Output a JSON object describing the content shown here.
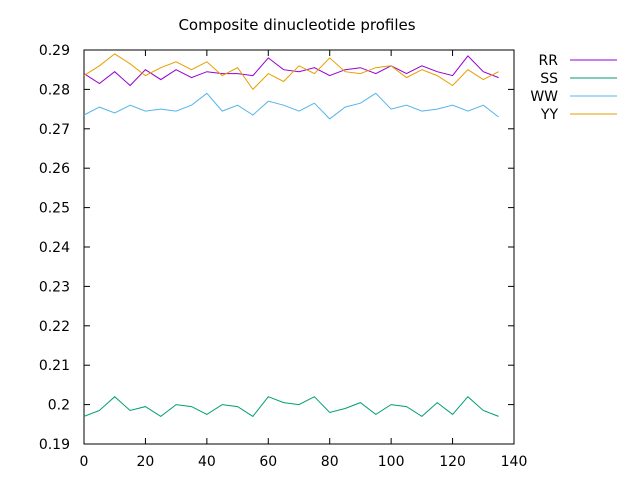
{
  "chart_data": {
    "type": "line",
    "title": "Composite dinucleotide profiles",
    "xlabel": "",
    "ylabel": "",
    "xlim": [
      0,
      140
    ],
    "ylim": [
      0.19,
      0.29
    ],
    "x_ticks": [
      "0",
      "20",
      "40",
      "60",
      "80",
      "100",
      "120",
      "140"
    ],
    "y_ticks": [
      "0.19",
      "0.2",
      "0.21",
      "0.22",
      "0.23",
      "0.24",
      "0.25",
      "0.26",
      "0.27",
      "0.28",
      "0.29"
    ],
    "grid": false,
    "legend_position": "outside-top-right",
    "x": [
      0,
      5,
      10,
      15,
      20,
      25,
      30,
      35,
      40,
      45,
      50,
      55,
      60,
      65,
      70,
      75,
      80,
      85,
      90,
      95,
      100,
      105,
      110,
      115,
      120,
      125,
      130,
      135
    ],
    "series": [
      {
        "name": "RR",
        "color": "#9400d3",
        "values": [
          0.284,
          0.2815,
          0.2845,
          0.281,
          0.285,
          0.2825,
          0.285,
          0.283,
          0.2845,
          0.284,
          0.284,
          0.2835,
          0.288,
          0.285,
          0.2845,
          0.2855,
          0.2835,
          0.285,
          0.2855,
          0.284,
          0.286,
          0.284,
          0.286,
          0.2845,
          0.2835,
          0.2885,
          0.2845,
          0.283
        ]
      },
      {
        "name": "SS",
        "color": "#009e73",
        "values": [
          0.197,
          0.1985,
          0.202,
          0.1985,
          0.1995,
          0.197,
          0.2,
          0.1995,
          0.1975,
          0.2,
          0.1995,
          0.197,
          0.202,
          0.2005,
          0.2,
          0.202,
          0.198,
          0.199,
          0.2005,
          0.1975,
          0.2,
          0.1995,
          0.197,
          0.2005,
          0.1975,
          0.202,
          0.1985,
          0.197
        ]
      },
      {
        "name": "WW",
        "color": "#56b4e9",
        "values": [
          0.2735,
          0.2755,
          0.274,
          0.276,
          0.2745,
          0.275,
          0.2745,
          0.276,
          0.279,
          0.2745,
          0.276,
          0.2735,
          0.277,
          0.276,
          0.2745,
          0.2765,
          0.2725,
          0.2755,
          0.2765,
          0.279,
          0.275,
          0.276,
          0.2745,
          0.275,
          0.276,
          0.2745,
          0.276,
          0.273
        ]
      },
      {
        "name": "YY",
        "color": "#e69f00",
        "values": [
          0.2835,
          0.286,
          0.289,
          0.2865,
          0.2835,
          0.2855,
          0.287,
          0.285,
          0.287,
          0.2835,
          0.2855,
          0.28,
          0.284,
          0.282,
          0.286,
          0.284,
          0.288,
          0.2845,
          0.284,
          0.2855,
          0.286,
          0.283,
          0.285,
          0.2835,
          0.281,
          0.285,
          0.2825,
          0.2845
        ]
      }
    ]
  }
}
